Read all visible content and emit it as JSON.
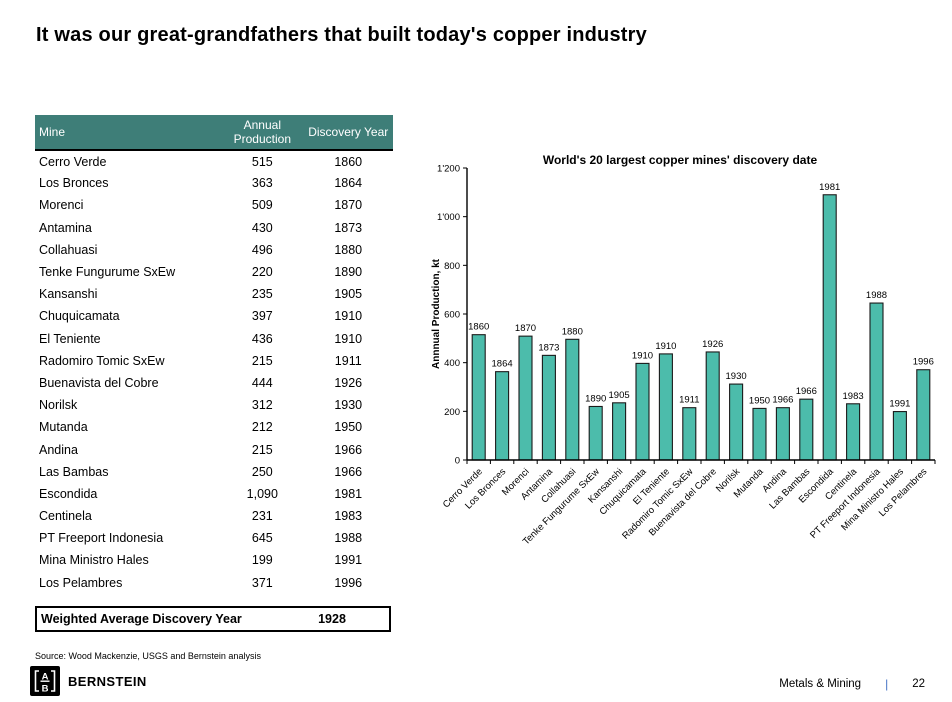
{
  "slide": {
    "title": "It was our great-grandfathers that built today's copper industry",
    "source": "Source: Wood Mackenzie, USGS and Bernstein analysis"
  },
  "table": {
    "columns": [
      "Mine",
      "Annual Production",
      "Discovery Year"
    ],
    "header_color": "#3E7E78",
    "rows": [
      [
        "Cerro Verde",
        "515",
        "1860"
      ],
      [
        "Los Bronces",
        "363",
        "1864"
      ],
      [
        "Morenci",
        "509",
        "1870"
      ],
      [
        "Antamina",
        "430",
        "1873"
      ],
      [
        "Collahuasi",
        "496",
        "1880"
      ],
      [
        "Tenke Fungurume SxEw",
        "220",
        "1890"
      ],
      [
        "Kansanshi",
        "235",
        "1905"
      ],
      [
        "Chuquicamata",
        "397",
        "1910"
      ],
      [
        "El Teniente",
        "436",
        "1910"
      ],
      [
        "Radomiro Tomic SxEw",
        "215",
        "1911"
      ],
      [
        "Buenavista del Cobre",
        "444",
        "1926"
      ],
      [
        "Norilsk",
        "312",
        "1930"
      ],
      [
        "Mutanda",
        "212",
        "1950"
      ],
      [
        "Andina",
        "215",
        "1966"
      ],
      [
        "Las Bambas",
        "250",
        "1966"
      ],
      [
        "Escondida",
        "1,090",
        "1981"
      ],
      [
        "Centinela",
        "231",
        "1983"
      ],
      [
        "PT Freeport Indonesia",
        "645",
        "1988"
      ],
      [
        "Mina Ministro Hales",
        "199",
        "1991"
      ],
      [
        "Los Pelambres",
        "371",
        "1996"
      ]
    ],
    "summary": {
      "label": "Weighted Average Discovery Year",
      "value": "1928"
    }
  },
  "chart_data": {
    "type": "bar",
    "title": "World's 20 largest copper mines' discovery date",
    "ylabel": "Annnual Production, kt",
    "xlabel": "",
    "categories": [
      "Cerro Verde",
      "Los Bronces",
      "Morenci",
      "Antamina",
      "Collahuasi",
      "Tenke Fungurume SxEw",
      "Kansanshi",
      "Chuquicamata",
      "El Teniente",
      "Radomiro Tomic SxEw",
      "Buenavista del Cobre",
      "Norilsk",
      "Mutanda",
      "Andina",
      "Las Bambas",
      "Escondida",
      "Centinela",
      "PT Freeport Indonesia",
      "Mina Ministro Hales",
      "Los Pelambres"
    ],
    "values": [
      515,
      363,
      509,
      430,
      496,
      220,
      235,
      397,
      436,
      215,
      444,
      312,
      212,
      215,
      250,
      1090,
      231,
      645,
      199,
      371
    ],
    "point_labels": [
      "1860",
      "1864",
      "1870",
      "1873",
      "1880",
      "1890",
      "1905",
      "1910",
      "1910",
      "1911",
      "1926",
      "1930",
      "1950",
      "1966",
      "1966",
      "1981",
      "1983",
      "1988",
      "1991",
      "1996"
    ],
    "ylim": [
      0,
      1200
    ],
    "yticks": [
      "0",
      "200",
      "400",
      "600",
      "800",
      "1'000",
      "1'200"
    ],
    "grid": false,
    "legend": false,
    "bar_color": "#4CBCAB",
    "bar_border": "#1A1A1A"
  },
  "footer": {
    "logo_letters": {
      "top": "A",
      "bottom": "B"
    },
    "brand": "BERNSTEIN",
    "section": "Metals & Mining",
    "divider": "|",
    "page": "22",
    "divider_color": "#4472C4"
  }
}
